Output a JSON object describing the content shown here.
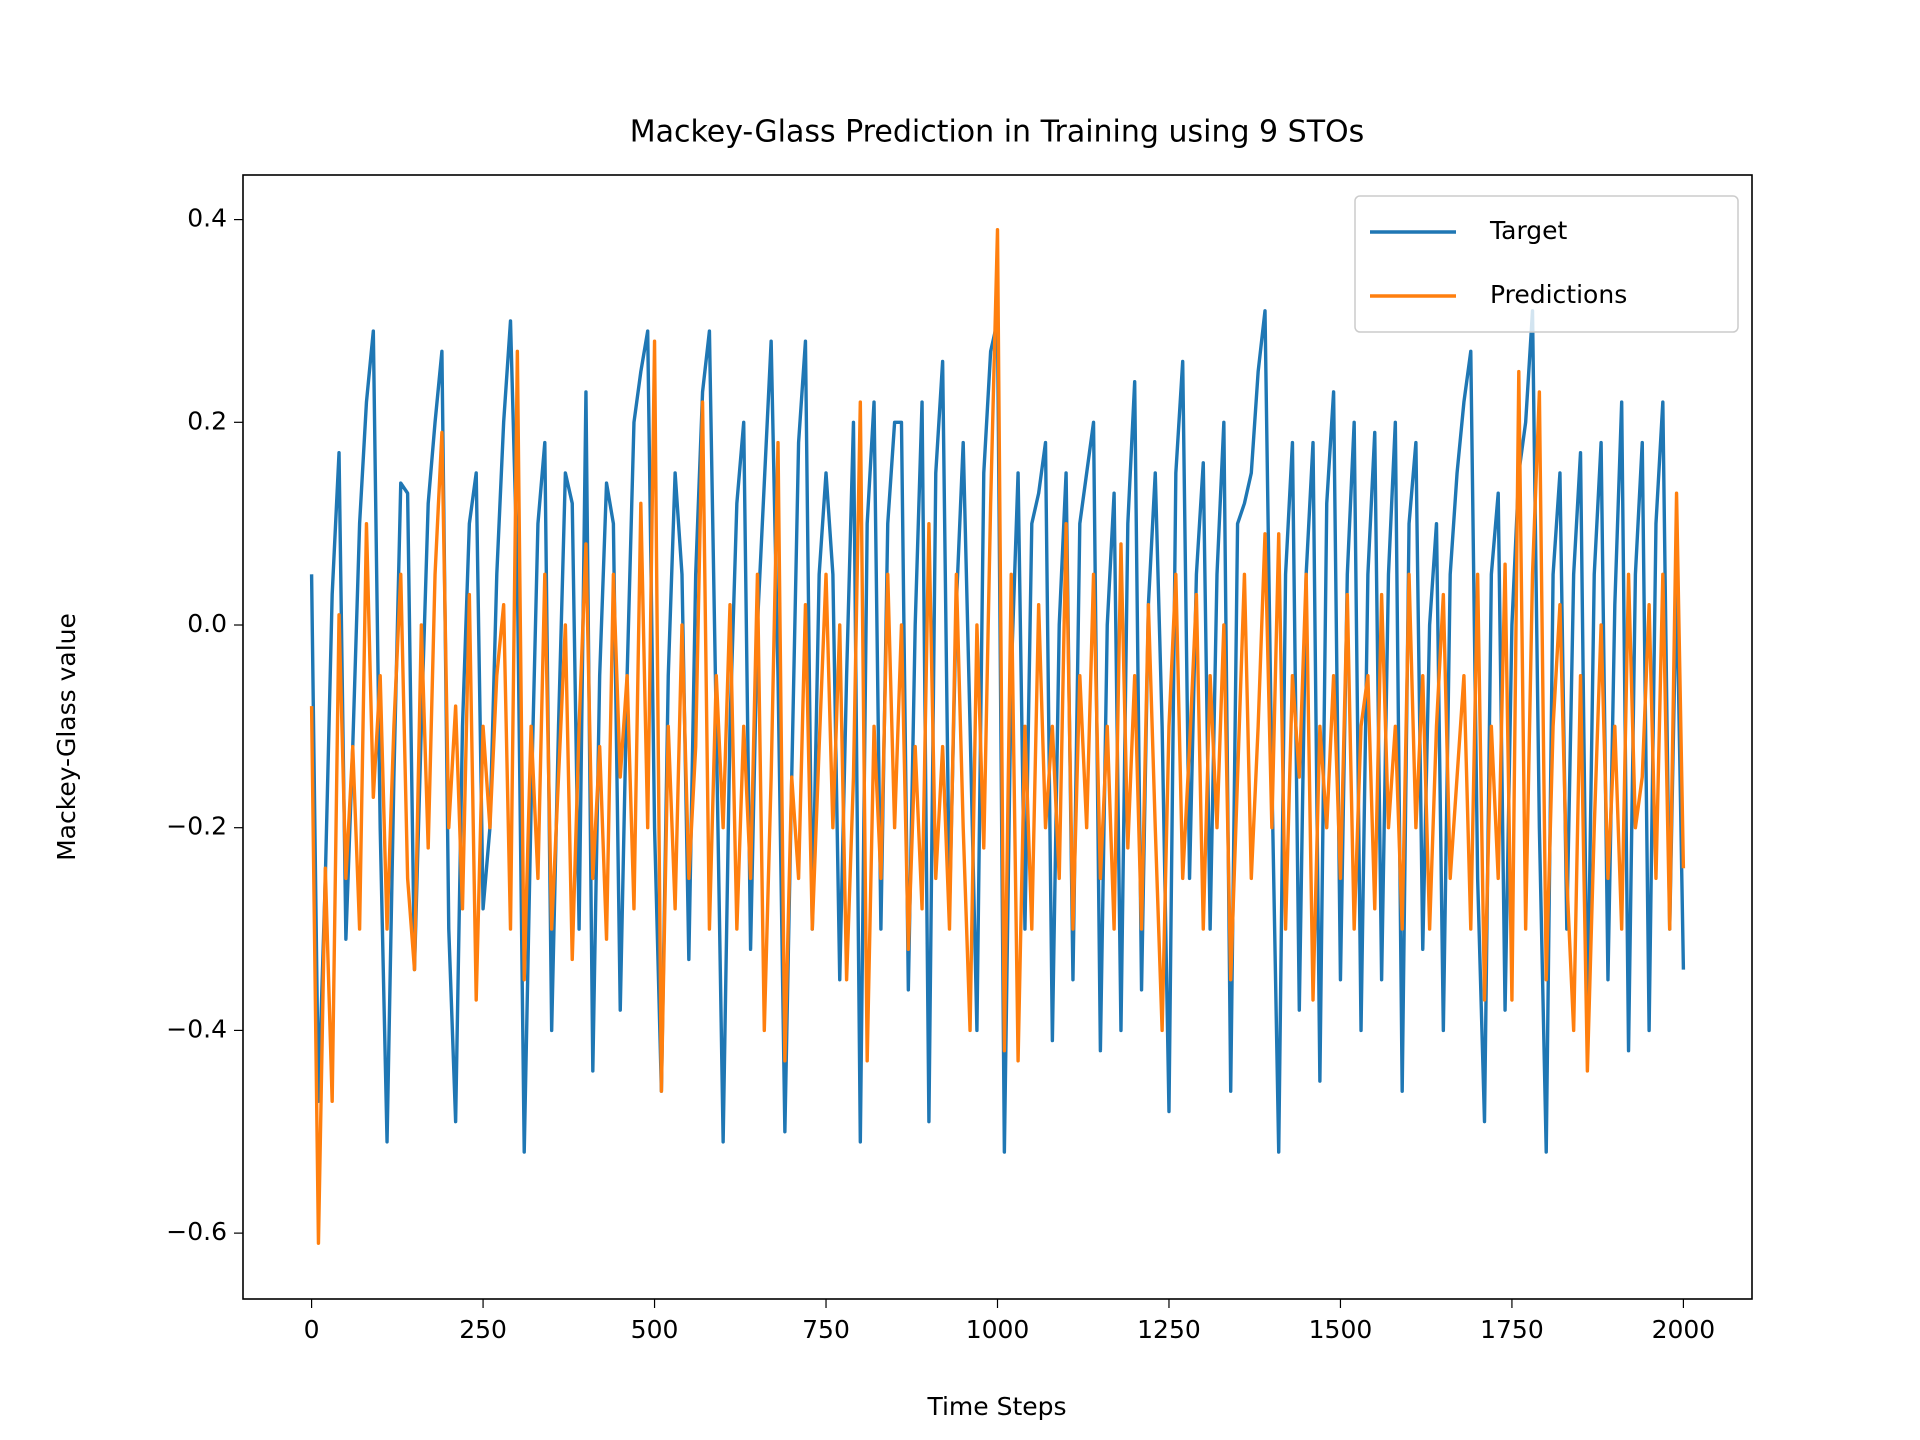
{
  "chart_data": {
    "type": "line",
    "title": "Mackey-Glass Prediction in Training using 9 STOs",
    "xlabel": "Time Steps",
    "ylabel": "Mackey-Glass value",
    "x": [
      0,
      10,
      20,
      30,
      40,
      50,
      60,
      70,
      80,
      90,
      100,
      110,
      120,
      130,
      140,
      150,
      160,
      170,
      180,
      190,
      200,
      210,
      220,
      230,
      240,
      250,
      260,
      270,
      280,
      290,
      300,
      310,
      320,
      330,
      340,
      350,
      360,
      370,
      380,
      390,
      400,
      410,
      420,
      430,
      440,
      450,
      460,
      470,
      480,
      490,
      500,
      510,
      520,
      530,
      540,
      550,
      560,
      570,
      580,
      590,
      600,
      610,
      620,
      630,
      640,
      650,
      660,
      670,
      680,
      690,
      700,
      710,
      720,
      730,
      740,
      750,
      760,
      770,
      780,
      790,
      800,
      810,
      820,
      830,
      840,
      850,
      860,
      870,
      880,
      890,
      900,
      910,
      920,
      930,
      940,
      950,
      960,
      970,
      980,
      990,
      1000,
      1010,
      1020,
      1030,
      1040,
      1050,
      1060,
      1070,
      1080,
      1090,
      1100,
      1110,
      1120,
      1130,
      1140,
      1150,
      1160,
      1170,
      1180,
      1190,
      1200,
      1210,
      1220,
      1230,
      1240,
      1250,
      1260,
      1270,
      1280,
      1290,
      1300,
      1310,
      1320,
      1330,
      1340,
      1350,
      1360,
      1370,
      1380,
      1390,
      1400,
      1410,
      1420,
      1430,
      1440,
      1450,
      1460,
      1470,
      1480,
      1490,
      1500,
      1510,
      1520,
      1530,
      1540,
      1550,
      1560,
      1570,
      1580,
      1590,
      1600,
      1610,
      1620,
      1630,
      1640,
      1650,
      1660,
      1670,
      1680,
      1690,
      1700,
      1710,
      1720,
      1730,
      1740,
      1750,
      1760,
      1770,
      1780,
      1790,
      1800,
      1810,
      1820,
      1830,
      1840,
      1850,
      1860,
      1870,
      1880,
      1890,
      1900,
      1910,
      1920,
      1930,
      1940,
      1950,
      1960,
      1970,
      1980,
      1990,
      2000
    ],
    "series": [
      {
        "name": "Target",
        "color": "#1f77b4",
        "values": [
          0.05,
          -0.47,
          -0.25,
          0.03,
          0.17,
          -0.31,
          -0.12,
          0.1,
          0.22,
          0.29,
          -0.2,
          -0.51,
          -0.15,
          0.14,
          0.13,
          -0.34,
          -0.1,
          0.12,
          0.2,
          0.27,
          -0.3,
          -0.49,
          -0.1,
          0.1,
          0.15,
          -0.28,
          -0.2,
          0.05,
          0.2,
          0.3,
          0.05,
          -0.52,
          -0.18,
          0.1,
          0.18,
          -0.4,
          -0.1,
          0.15,
          0.12,
          -0.3,
          0.23,
          -0.44,
          -0.05,
          0.14,
          0.1,
          -0.38,
          -0.05,
          0.2,
          0.25,
          0.29,
          -0.2,
          -0.46,
          -0.05,
          0.15,
          0.05,
          -0.33,
          0.05,
          0.23,
          0.29,
          -0.1,
          -0.51,
          -0.1,
          0.12,
          0.2,
          -0.32,
          0.0,
          0.14,
          0.28,
          -0.05,
          -0.5,
          -0.15,
          0.18,
          0.28,
          -0.3,
          0.05,
          0.15,
          0.05,
          -0.35,
          -0.05,
          0.2,
          -0.51,
          0.1,
          0.22,
          -0.3,
          0.1,
          0.2,
          0.2,
          -0.36,
          0.0,
          0.22,
          -0.49,
          0.15,
          0.26,
          -0.28,
          0.02,
          0.18,
          -0.1,
          -0.4,
          0.15,
          0.27,
          0.3,
          -0.52,
          -0.05,
          0.15,
          -0.3,
          0.1,
          0.13,
          0.18,
          -0.41,
          0.0,
          0.15,
          -0.35,
          0.1,
          0.15,
          0.2,
          -0.42,
          0.0,
          0.13,
          -0.4,
          0.1,
          0.24,
          -0.36,
          0.02,
          0.15,
          -0.1,
          -0.48,
          0.15,
          0.26,
          -0.25,
          0.05,
          0.16,
          -0.3,
          0.05,
          0.2,
          -0.46,
          0.1,
          0.12,
          0.15,
          0.25,
          0.31,
          -0.15,
          -0.52,
          0.05,
          0.18,
          -0.38,
          0.05,
          0.18,
          -0.45,
          0.12,
          0.23,
          -0.35,
          0.05,
          0.2,
          -0.4,
          0.05,
          0.19,
          -0.35,
          0.05,
          0.2,
          -0.46,
          0.1,
          0.18,
          -0.32,
          0.0,
          0.1,
          -0.4,
          0.05,
          0.15,
          0.22,
          0.27,
          -0.25,
          -0.49,
          0.05,
          0.13,
          -0.38,
          0.0,
          0.15,
          0.2,
          0.31,
          -0.2,
          -0.52,
          0.05,
          0.15,
          -0.3,
          0.05,
          0.17,
          -0.4,
          0.05,
          0.18,
          -0.35,
          0.02,
          0.22,
          -0.42,
          0.05,
          0.18,
          -0.4,
          0.1,
          0.22,
          -0.3,
          0.05,
          -0.34
        ]
      },
      {
        "name": "Predictions",
        "color": "#ff7f0e",
        "values": [
          -0.08,
          -0.61,
          -0.24,
          -0.47,
          0.01,
          -0.25,
          -0.12,
          -0.3,
          0.1,
          -0.17,
          -0.05,
          -0.3,
          -0.1,
          0.05,
          -0.25,
          -0.34,
          0.0,
          -0.22,
          0.05,
          0.19,
          -0.2,
          -0.08,
          -0.28,
          0.03,
          -0.37,
          -0.1,
          -0.2,
          -0.05,
          0.02,
          -0.3,
          0.27,
          -0.35,
          -0.1,
          -0.25,
          0.05,
          -0.3,
          -0.15,
          0.0,
          -0.33,
          -0.1,
          0.08,
          -0.25,
          -0.12,
          -0.31,
          0.05,
          -0.15,
          -0.05,
          -0.28,
          0.12,
          -0.2,
          0.28,
          -0.46,
          -0.1,
          -0.28,
          0.0,
          -0.25,
          -0.12,
          0.22,
          -0.3,
          -0.05,
          -0.2,
          0.02,
          -0.3,
          -0.1,
          -0.25,
          0.05,
          -0.4,
          -0.15,
          0.18,
          -0.43,
          -0.15,
          -0.25,
          0.02,
          -0.3,
          -0.12,
          0.05,
          -0.2,
          0.0,
          -0.35,
          -0.15,
          0.22,
          -0.43,
          -0.1,
          -0.25,
          0.05,
          -0.2,
          0.0,
          -0.32,
          -0.12,
          -0.28,
          0.1,
          -0.25,
          -0.12,
          -0.3,
          0.05,
          -0.2,
          -0.4,
          0.0,
          -0.22,
          0.12,
          0.39,
          -0.42,
          0.05,
          -0.43,
          -0.1,
          -0.3,
          0.02,
          -0.2,
          -0.1,
          -0.25,
          0.1,
          -0.3,
          -0.05,
          -0.2,
          0.05,
          -0.25,
          -0.1,
          -0.3,
          0.08,
          -0.22,
          -0.05,
          -0.3,
          0.02,
          -0.2,
          -0.4,
          -0.1,
          0.05,
          -0.25,
          -0.12,
          0.03,
          -0.3,
          -0.05,
          -0.2,
          0.0,
          -0.35,
          -0.15,
          0.05,
          -0.25,
          -0.1,
          0.09,
          -0.2,
          0.09,
          -0.3,
          -0.05,
          -0.15,
          0.05,
          -0.37,
          -0.1,
          -0.2,
          -0.05,
          -0.25,
          0.03,
          -0.3,
          -0.1,
          -0.05,
          -0.28,
          0.03,
          -0.2,
          -0.1,
          -0.3,
          0.05,
          -0.2,
          -0.05,
          -0.3,
          -0.1,
          0.03,
          -0.25,
          -0.15,
          -0.05,
          -0.3,
          0.05,
          -0.37,
          -0.1,
          -0.25,
          0.06,
          -0.37,
          0.25,
          -0.3,
          0.05,
          0.23,
          -0.35,
          -0.1,
          0.02,
          -0.25,
          -0.4,
          -0.05,
          -0.44,
          -0.2,
          0.0,
          -0.25,
          -0.1,
          -0.3,
          0.05,
          -0.2,
          -0.15,
          0.02,
          -0.25,
          0.05,
          -0.3,
          0.13,
          -0.24
        ]
      }
    ],
    "xlim": [
      -100,
      2100
    ],
    "xticks": [
      0,
      250,
      500,
      750,
      1000,
      1250,
      1500,
      1750,
      2000
    ],
    "ylim": [
      -0.665,
      0.444
    ],
    "yticks": [
      {
        "value": -0.6,
        "label": "−0.6"
      },
      {
        "value": -0.4,
        "label": "−0.4"
      },
      {
        "value": -0.2,
        "label": "−0.2"
      },
      {
        "value": 0,
        "label": "0.0"
      },
      0.2,
      0.4
    ],
    "legend": "upper right",
    "grid": false
  }
}
